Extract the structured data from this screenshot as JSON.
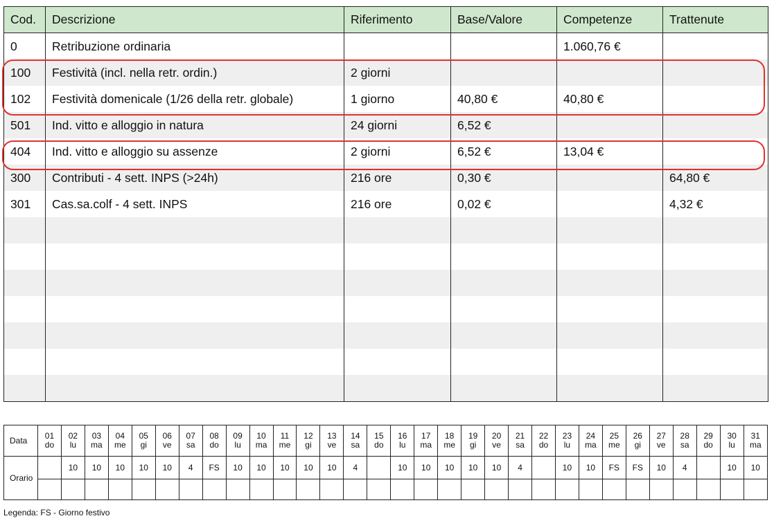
{
  "table": {
    "headers": [
      "Cod.",
      "Descrizione",
      "Riferimento",
      "Base/Valore",
      "Competenze",
      "Trattenute"
    ],
    "rows": [
      [
        "0",
        "Retribuzione ordinaria",
        "",
        "",
        "1.060,76 €",
        ""
      ],
      [
        "100",
        "Festività (incl. nella retr. ordin.)",
        "2 giorni",
        "",
        "",
        ""
      ],
      [
        "102",
        "Festività domenicale (1/26 della retr. globale)",
        "1 giorno",
        "40,80 €",
        "40,80 €",
        ""
      ],
      [
        "501",
        "Ind. vitto e alloggio in natura",
        "24 giorni",
        "6,52 €",
        "",
        ""
      ],
      [
        "404",
        "Ind. vitto e alloggio su assenze",
        "2 giorni",
        "6,52 €",
        "13,04 €",
        ""
      ],
      [
        "300",
        "Contributi - 4 sett. INPS (>24h)",
        "216 ore",
        "0,30 €",
        "",
        "64,80 €"
      ],
      [
        "301",
        "Cas.sa.colf - 4 sett. INPS",
        "216 ore",
        "0,02 €",
        "",
        "4,32 €"
      ],
      [
        "",
        "",
        "",
        "",
        "",
        ""
      ],
      [
        "",
        "",
        "",
        "",
        "",
        ""
      ],
      [
        "",
        "",
        "",
        "",
        "",
        ""
      ],
      [
        "",
        "",
        "",
        "",
        "",
        ""
      ],
      [
        "",
        "",
        "",
        "",
        "",
        ""
      ],
      [
        "",
        "",
        "",
        "",
        "",
        ""
      ],
      [
        "",
        "",
        "",
        "",
        "",
        ""
      ]
    ]
  },
  "highlight_color": "#e0312b",
  "header_color": "#cfe8cd",
  "calendar": {
    "data_label": "Data",
    "orario_label": "Orario",
    "days": [
      {
        "num": "01",
        "wd": "do",
        "hours": ""
      },
      {
        "num": "02",
        "wd": "lu",
        "hours": "10"
      },
      {
        "num": "03",
        "wd": "ma",
        "hours": "10"
      },
      {
        "num": "04",
        "wd": "me",
        "hours": "10"
      },
      {
        "num": "05",
        "wd": "gi",
        "hours": "10"
      },
      {
        "num": "06",
        "wd": "ve",
        "hours": "10"
      },
      {
        "num": "07",
        "wd": "sa",
        "hours": "4"
      },
      {
        "num": "08",
        "wd": "do",
        "hours": "FS"
      },
      {
        "num": "09",
        "wd": "lu",
        "hours": "10"
      },
      {
        "num": "10",
        "wd": "ma",
        "hours": "10"
      },
      {
        "num": "11",
        "wd": "me",
        "hours": "10"
      },
      {
        "num": "12",
        "wd": "gi",
        "hours": "10"
      },
      {
        "num": "13",
        "wd": "ve",
        "hours": "10"
      },
      {
        "num": "14",
        "wd": "sa",
        "hours": "4"
      },
      {
        "num": "15",
        "wd": "do",
        "hours": ""
      },
      {
        "num": "16",
        "wd": "lu",
        "hours": "10"
      },
      {
        "num": "17",
        "wd": "ma",
        "hours": "10"
      },
      {
        "num": "18",
        "wd": "me",
        "hours": "10"
      },
      {
        "num": "19",
        "wd": "gi",
        "hours": "10"
      },
      {
        "num": "20",
        "wd": "ve",
        "hours": "10"
      },
      {
        "num": "21",
        "wd": "sa",
        "hours": "4"
      },
      {
        "num": "22",
        "wd": "do",
        "hours": ""
      },
      {
        "num": "23",
        "wd": "lu",
        "hours": "10"
      },
      {
        "num": "24",
        "wd": "ma",
        "hours": "10"
      },
      {
        "num": "25",
        "wd": "me",
        "hours": "FS"
      },
      {
        "num": "26",
        "wd": "gi",
        "hours": "FS"
      },
      {
        "num": "27",
        "wd": "ve",
        "hours": "10"
      },
      {
        "num": "28",
        "wd": "sa",
        "hours": "4"
      },
      {
        "num": "29",
        "wd": "do",
        "hours": ""
      },
      {
        "num": "30",
        "wd": "lu",
        "hours": "10"
      },
      {
        "num": "31",
        "wd": "ma",
        "hours": "10"
      }
    ]
  },
  "legend": "Legenda: FS - Giorno festivo"
}
